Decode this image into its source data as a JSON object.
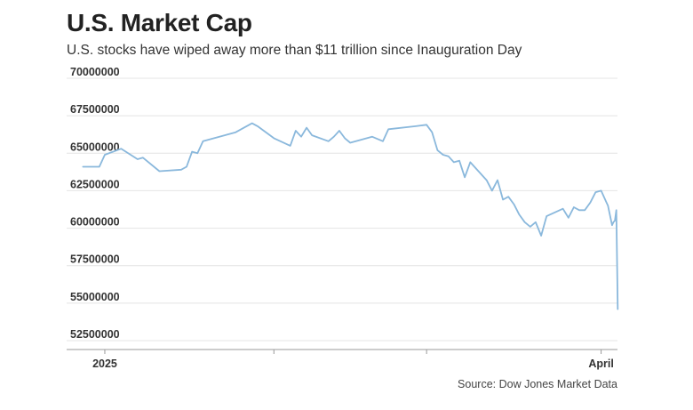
{
  "title": "U.S. Market Cap",
  "subtitle": "U.S. stocks have wiped away more than $11 trillion since Inauguration Day",
  "source": "Source: Dow Jones Market Data",
  "colors": {
    "line": "#8ab8dc",
    "grid": "#e4e4e4",
    "axis": "#999999"
  },
  "chart_data": {
    "type": "line",
    "title": "U.S. Market Cap",
    "xlabel": "",
    "ylabel": "",
    "ylim": [
      52500000,
      70000000
    ],
    "xlim": [
      "2024-12-24",
      "2025-04-04"
    ],
    "grid": true,
    "yticks": [
      70000000,
      67500000,
      65000000,
      62500000,
      60000000,
      57500000,
      55000000,
      52500000
    ],
    "ytick_labels": [
      "70000000",
      "67500000",
      "65000000",
      "62500000",
      "60000000",
      "57500000",
      "55000000",
      "52500000"
    ],
    "xticks": [
      {
        "date": "2024-12-31",
        "label": "2025"
      },
      {
        "date": "2025-01-31",
        "label": ""
      },
      {
        "date": "2025-02-28",
        "label": ""
      },
      {
        "date": "2025-04-01",
        "label": "April"
      }
    ],
    "series": [
      {
        "values": [
          [
            "2024-12-27",
            64100000
          ],
          [
            "2024-12-30",
            64100000
          ],
          [
            "2024-12-31",
            64900000
          ],
          [
            "2025-01-03",
            65300000
          ],
          [
            "2025-01-06",
            64600000
          ],
          [
            "2025-01-07",
            64700000
          ],
          [
            "2025-01-10",
            63800000
          ],
          [
            "2025-01-14",
            63900000
          ],
          [
            "2025-01-15",
            64100000
          ],
          [
            "2025-01-16",
            65100000
          ],
          [
            "2025-01-17",
            65000000
          ],
          [
            "2025-01-18",
            65800000
          ],
          [
            "2025-01-24",
            66400000
          ],
          [
            "2025-01-27",
            67000000
          ],
          [
            "2025-01-28",
            66800000
          ],
          [
            "2025-01-31",
            66000000
          ],
          [
            "2025-02-03",
            65500000
          ],
          [
            "2025-02-04",
            66500000
          ],
          [
            "2025-02-05",
            66100000
          ],
          [
            "2025-02-06",
            66700000
          ],
          [
            "2025-02-07",
            66200000
          ],
          [
            "2025-02-10",
            65800000
          ],
          [
            "2025-02-11",
            66100000
          ],
          [
            "2025-02-12",
            66500000
          ],
          [
            "2025-02-13",
            66000000
          ],
          [
            "2025-02-14",
            65700000
          ],
          [
            "2025-02-18",
            66100000
          ],
          [
            "2025-02-20",
            65800000
          ],
          [
            "2025-02-21",
            66600000
          ],
          [
            "2025-02-26",
            66800000
          ],
          [
            "2025-02-28",
            66900000
          ],
          [
            "2025-03-01",
            66400000
          ],
          [
            "2025-03-02",
            65200000
          ],
          [
            "2025-03-03",
            64900000
          ],
          [
            "2025-03-04",
            64800000
          ],
          [
            "2025-03-05",
            64400000
          ],
          [
            "2025-03-06",
            64500000
          ],
          [
            "2025-03-07",
            63400000
          ],
          [
            "2025-03-08",
            64400000
          ],
          [
            "2025-03-11",
            63200000
          ],
          [
            "2025-03-12",
            62500000
          ],
          [
            "2025-03-13",
            63200000
          ],
          [
            "2025-03-14",
            61900000
          ],
          [
            "2025-03-15",
            62100000
          ],
          [
            "2025-03-16",
            61600000
          ],
          [
            "2025-03-17",
            60900000
          ],
          [
            "2025-03-18",
            60400000
          ],
          [
            "2025-03-19",
            60100000
          ],
          [
            "2025-03-20",
            60400000
          ],
          [
            "2025-03-21",
            59500000
          ],
          [
            "2025-03-22",
            60800000
          ],
          [
            "2025-03-25",
            61300000
          ],
          [
            "2025-03-26",
            60700000
          ],
          [
            "2025-03-27",
            61400000
          ],
          [
            "2025-03-28",
            61200000
          ],
          [
            "2025-03-29",
            61200000
          ],
          [
            "2025-03-30",
            61700000
          ],
          [
            "2025-03-31",
            62400000
          ],
          [
            "2025-04-01",
            62500000
          ],
          [
            "2025-04-02",
            61700000
          ],
          [
            "2025-04-02",
            61500000
          ],
          [
            "2025-04-03",
            60200000
          ],
          [
            "2025-04-03",
            60400000
          ],
          [
            "2025-04-03",
            60500000
          ],
          [
            "2025-04-03",
            61200000
          ],
          [
            "2025-04-03",
            54600000
          ]
        ]
      }
    ]
  }
}
